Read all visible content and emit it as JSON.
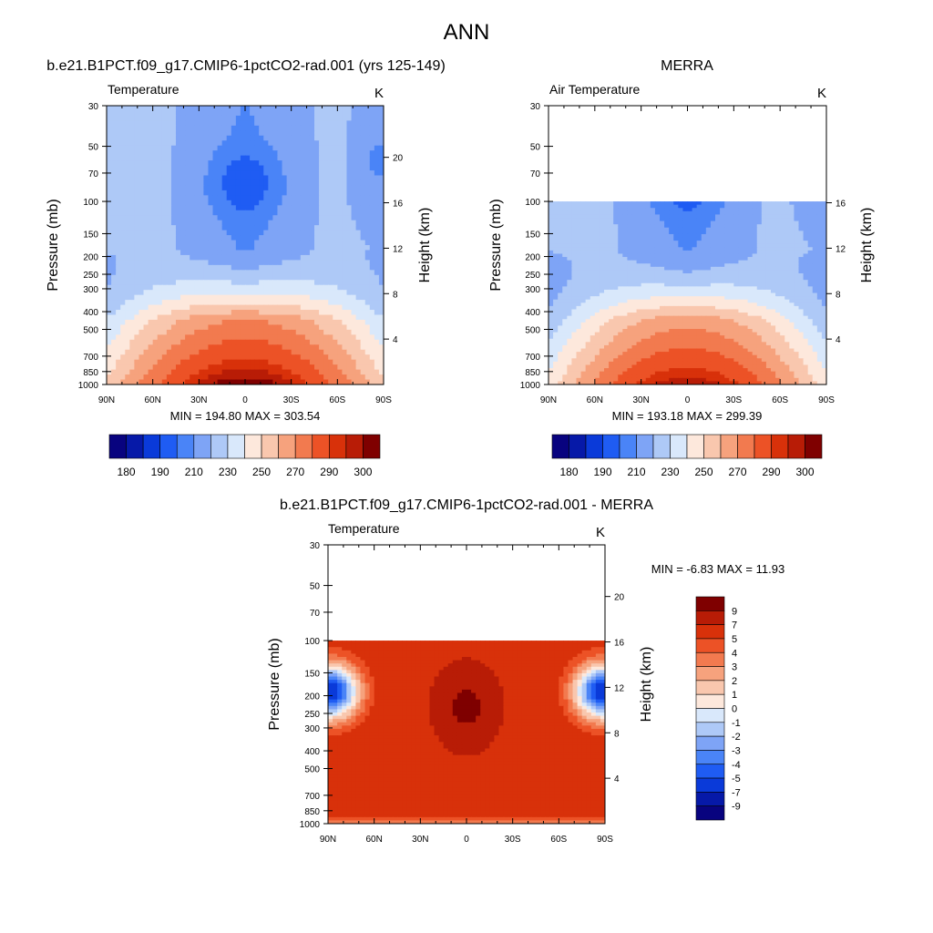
{
  "figure": {
    "title": "ANN"
  },
  "colors": {
    "abs_palette": [
      "#08037f",
      "#0619a8",
      "#0a3ad9",
      "#1f5cf3",
      "#4a84f7",
      "#7ea4f6",
      "#aec9f7",
      "#d9e8fb",
      "#fde8dc",
      "#f9c7ae",
      "#f6a27d",
      "#f27a4f",
      "#ec5226",
      "#d8310a",
      "#b81c06",
      "#7f0000"
    ],
    "diff_palette": [
      "#08037f",
      "#0619a8",
      "#0a3ad9",
      "#1f5cf3",
      "#4a84f7",
      "#7ea4f6",
      "#aec9f7",
      "#d9e8fb",
      "#fde8dc",
      "#f9c7ae",
      "#f6a27d",
      "#f27a4f",
      "#ec5226",
      "#d8310a",
      "#b81c06",
      "#7f0000"
    ]
  },
  "chart_data": [
    {
      "type": "heatmap",
      "title": "b.e21.B1PCT.f09_g17.CMIP6-1pctCO2-rad.001 (yrs 125-149)",
      "variable_label": "Temperature",
      "units": "K",
      "ylabel": "Pressure (mb)",
      "y2label": "Height (km)",
      "x_ticks": [
        "90N",
        "60N",
        "30N",
        "0",
        "30S",
        "60S",
        "90S"
      ],
      "y_ticks": [
        "30",
        "50",
        "70",
        "100",
        "150",
        "200",
        "250",
        "300",
        "400",
        "500",
        "700",
        "850",
        "1000"
      ],
      "y2_ticks": [
        "20",
        "16",
        "12",
        "8",
        "4"
      ],
      "ylim": [
        1000,
        30
      ],
      "min_max_text": "MIN = 194.80  MAX = 303.54",
      "min": 194.8,
      "max": 303.54,
      "data_top_pressure": 30,
      "colorbar": {
        "orientation": "horizontal",
        "labels": [
          "180",
          "190",
          "210",
          "230",
          "250",
          "270",
          "290",
          "300"
        ],
        "n_boxes": 16
      }
    },
    {
      "type": "heatmap",
      "title": "MERRA",
      "variable_label": "Air Temperature",
      "units": "K",
      "ylabel": "Pressure (mb)",
      "y2label": "Height (km)",
      "x_ticks": [
        "90N",
        "60N",
        "30N",
        "0",
        "30S",
        "60S",
        "90S"
      ],
      "y_ticks": [
        "30",
        "50",
        "70",
        "100",
        "150",
        "200",
        "250",
        "300",
        "400",
        "500",
        "700",
        "850",
        "1000"
      ],
      "y2_ticks": [
        "16",
        "12",
        "8",
        "4"
      ],
      "ylim": [
        1000,
        30
      ],
      "min_max_text": "MIN = 193.18  MAX = 299.39",
      "min": 193.18,
      "max": 299.39,
      "data_top_pressure": 100,
      "colorbar": {
        "orientation": "horizontal",
        "labels": [
          "180",
          "190",
          "210",
          "230",
          "250",
          "270",
          "290",
          "300"
        ],
        "n_boxes": 16
      }
    },
    {
      "type": "heatmap",
      "title": "b.e21.B1PCT.f09_g17.CMIP6-1pctCO2-rad.001 - MERRA",
      "variable_label": "Temperature",
      "units": "K",
      "ylabel": "Pressure (mb)",
      "y2label": "Height (km)",
      "x_ticks": [
        "90N",
        "60N",
        "30N",
        "0",
        "30S",
        "60S",
        "90S"
      ],
      "y_ticks": [
        "30",
        "50",
        "70",
        "100",
        "150",
        "200",
        "250",
        "300",
        "400",
        "500",
        "700",
        "850",
        "1000"
      ],
      "y2_ticks": [
        "20",
        "16",
        "12",
        "8",
        "4"
      ],
      "ylim": [
        1000,
        30
      ],
      "min_max_text": "MIN =  -6.83  MAX =  11.93",
      "min": -6.83,
      "max": 11.93,
      "data_top_pressure": 100,
      "colorbar": {
        "orientation": "vertical",
        "labels": [
          "9",
          "7",
          "5",
          "4",
          "3",
          "2",
          "1",
          "0",
          "-1",
          "-2",
          "-3",
          "-4",
          "-5",
          "-7",
          "-9"
        ],
        "n_boxes": 16
      }
    }
  ]
}
